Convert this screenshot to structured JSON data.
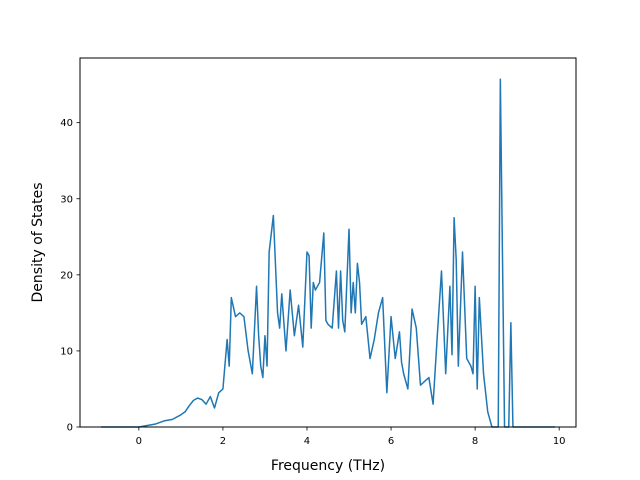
{
  "chart_data": {
    "type": "line",
    "title": "",
    "xlabel": "Frequency (THz)",
    "ylabel": "Density of States",
    "xlim": [
      -1.4,
      10.4
    ],
    "ylim": [
      0,
      48.5
    ],
    "xticks": [
      0,
      2,
      4,
      6,
      8,
      10
    ],
    "yticks": [
      0,
      10,
      20,
      30,
      40
    ],
    "grid": false,
    "legend": "none",
    "series": [
      {
        "color": "#1f77b4",
        "x": [
          -0.9,
          0.0,
          0.2,
          0.4,
          0.6,
          0.8,
          1.0,
          1.1,
          1.2,
          1.3,
          1.4,
          1.5,
          1.6,
          1.7,
          1.8,
          1.9,
          2.0,
          2.1,
          2.15,
          2.2,
          2.3,
          2.4,
          2.5,
          2.6,
          2.7,
          2.8,
          2.85,
          2.9,
          2.95,
          3.0,
          3.05,
          3.1,
          3.2,
          3.3,
          3.35,
          3.4,
          3.5,
          3.6,
          3.7,
          3.8,
          3.9,
          4.0,
          4.05,
          4.1,
          4.15,
          4.2,
          4.3,
          4.4,
          4.45,
          4.5,
          4.6,
          4.7,
          4.75,
          4.8,
          4.85,
          4.9,
          5.0,
          5.05,
          5.1,
          5.15,
          5.2,
          5.25,
          5.3,
          5.4,
          5.5,
          5.6,
          5.7,
          5.8,
          5.9,
          6.0,
          6.1,
          6.2,
          6.25,
          6.3,
          6.4,
          6.5,
          6.6,
          6.7,
          6.8,
          6.9,
          7.0,
          7.1,
          7.2,
          7.3,
          7.4,
          7.45,
          7.5,
          7.55,
          7.6,
          7.7,
          7.8,
          7.9,
          7.95,
          8.0,
          8.05,
          8.1,
          8.2,
          8.3,
          8.4,
          8.5,
          8.55,
          8.6,
          8.7,
          8.8,
          8.85,
          8.9,
          9.0,
          9.1,
          9.5,
          9.9
        ],
        "y": [
          0.0,
          0.0,
          0.2,
          0.4,
          0.8,
          1.0,
          1.6,
          2.0,
          2.8,
          3.5,
          3.8,
          3.6,
          3.0,
          4.0,
          2.5,
          4.5,
          5.0,
          11.5,
          8.0,
          17.0,
          14.5,
          15.0,
          14.5,
          10.0,
          7.0,
          18.5,
          12.0,
          8.0,
          6.5,
          12.0,
          8.0,
          23.0,
          27.8,
          15.0,
          13.0,
          17.5,
          10.0,
          18.0,
          12.0,
          16.0,
          10.5,
          23.0,
          22.5,
          13.0,
          19.0,
          18.0,
          19.0,
          25.5,
          14.0,
          13.5,
          13.0,
          20.5,
          13.0,
          20.5,
          14.0,
          12.5,
          26.0,
          15.0,
          19.0,
          15.0,
          21.5,
          19.0,
          13.5,
          14.5,
          9.0,
          11.5,
          15.0,
          17.0,
          4.5,
          14.5,
          9.0,
          12.5,
          8.5,
          7.0,
          5.0,
          15.5,
          13.0,
          5.5,
          6.0,
          6.5,
          3.0,
          12.0,
          20.5,
          7.0,
          18.5,
          9.5,
          27.5,
          22.0,
          8.0,
          23.0,
          9.0,
          8.0,
          7.0,
          18.5,
          5.0,
          17.0,
          7.0,
          2.0,
          0.0,
          0.0,
          0.0,
          45.7,
          0.0,
          0.0,
          13.7,
          0.0,
          0.0,
          0.0,
          0.0,
          0.0
        ]
      }
    ]
  }
}
